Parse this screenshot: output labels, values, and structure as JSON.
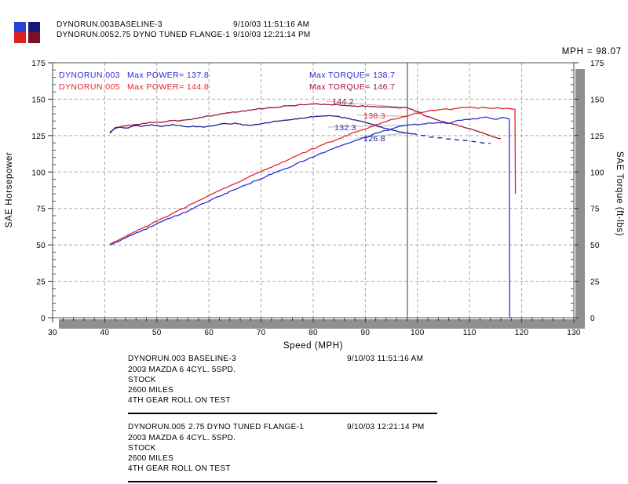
{
  "header": {
    "runs": [
      {
        "file": "DYNORUN.003",
        "desc": "BASELINE-3",
        "timestamp": "9/10/03 11:51:16 AM"
      },
      {
        "file": "DYNORUN.005",
        "desc": "2.75 DYNO TUNED FLANGE-1",
        "timestamp": "9/10/03 12:21:14 PM"
      }
    ]
  },
  "chart_data": {
    "type": "line",
    "cursor_readout": "MPH = 98.07",
    "cursor_mph": 98.07,
    "xlabel": "Speed (MPH)",
    "ylabel_left": "SAE Horsepower",
    "ylabel_right": "SAE Torque (ft-lbs)",
    "xlim": [
      30,
      130
    ],
    "ylim": [
      0,
      175
    ],
    "xticks": [
      30,
      40,
      50,
      60,
      70,
      80,
      90,
      100,
      110,
      120,
      130
    ],
    "yticks": [
      0,
      25,
      50,
      75,
      100,
      125,
      150,
      175
    ],
    "grid": true,
    "legend_position": "top-inside",
    "colors": {
      "grid": "#a8a8a8",
      "shadow": "#8f8f8f",
      "frame": "#6e6e6e",
      "cursor": "#5a5a5a",
      "leader": "#b4b4b4",
      "swatch": {
        "p3": "#2741d9",
        "p5": "#e02020",
        "t3": "#181878",
        "t5": "#7c1020"
      }
    },
    "legend": {
      "rows": [
        {
          "file": "DYNORUN.003",
          "power": "Max POWER= 137.8",
          "torque": "Max TORQUE= 138.7",
          "file_color": "#2a2ad4",
          "power_color": "#2a2ad4",
          "torque_color": "#2a2ad4"
        },
        {
          "file": "DYNORUN.005",
          "power": "Max POWER= 144.8",
          "torque": "Max TORQUE= 146.7",
          "file_color": "#e02433",
          "power_color": "#e02433",
          "torque_color": "#a51235"
        }
      ]
    },
    "annotations": [
      {
        "text": "144.2",
        "value": 144.2,
        "color": "#9e1536",
        "x": 437,
        "y": 133
      },
      {
        "text": "138.3",
        "value": 138.3,
        "color": "#e02433",
        "x": 477,
        "y": 151
      },
      {
        "text": "132.3",
        "value": 132.3,
        "color": "#2a2ad4",
        "x": 440,
        "y": 166
      },
      {
        "text": "126.8",
        "value": 126.8,
        "color": "#1d1d8c",
        "x": 477,
        "y": 180
      }
    ],
    "series": [
      {
        "name": "torque-005",
        "run": "DYNORUN.005",
        "color": "#9e1536",
        "points": [
          [
            41,
            127.5
          ],
          [
            42,
            130.5
          ],
          [
            43,
            131
          ],
          [
            44,
            131.6
          ],
          [
            45,
            132
          ],
          [
            46,
            132.6
          ],
          [
            47,
            133
          ],
          [
            48,
            133.4
          ],
          [
            49,
            134
          ],
          [
            50,
            134.4
          ],
          [
            51,
            134.2
          ],
          [
            52,
            134.8
          ],
          [
            53,
            135.2
          ],
          [
            54,
            135
          ],
          [
            55,
            135.6
          ],
          [
            56,
            136
          ],
          [
            57,
            136.6
          ],
          [
            58,
            137.2
          ],
          [
            59,
            137.8
          ],
          [
            60,
            138.4
          ],
          [
            61,
            139
          ],
          [
            62,
            139.6
          ],
          [
            63,
            140.2
          ],
          [
            64,
            140.6
          ],
          [
            65,
            141
          ],
          [
            66,
            141.4
          ],
          [
            67,
            141.8
          ],
          [
            68,
            142.4
          ],
          [
            69,
            143
          ],
          [
            70,
            143.4
          ],
          [
            71,
            143.8
          ],
          [
            72,
            144.2
          ],
          [
            73,
            144.6
          ],
          [
            74,
            145
          ],
          [
            75,
            145.4
          ],
          [
            76,
            145.6
          ],
          [
            77,
            146
          ],
          [
            78,
            146.2
          ],
          [
            79,
            146.4
          ],
          [
            80,
            146.6
          ],
          [
            81,
            146.7
          ],
          [
            82,
            146.5
          ],
          [
            83,
            146.4
          ],
          [
            84,
            146.2
          ],
          [
            85,
            146
          ],
          [
            86,
            145.8
          ],
          [
            87,
            145.6
          ],
          [
            88,
            145.4
          ],
          [
            89,
            145.2
          ],
          [
            90,
            145
          ],
          [
            91,
            144.9
          ],
          [
            92,
            144.8
          ],
          [
            93,
            144.6
          ],
          [
            94,
            144.5
          ],
          [
            95,
            144.4
          ],
          [
            96,
            144.3
          ],
          [
            97,
            144.2
          ],
          [
            98,
            144.2
          ],
          [
            99,
            143
          ],
          [
            100,
            141.5
          ],
          [
            101,
            139.5
          ],
          [
            102,
            138
          ],
          [
            103,
            136.8
          ],
          [
            104,
            135.6
          ],
          [
            105,
            134.6
          ],
          [
            106,
            133.6
          ],
          [
            107,
            132.6
          ],
          [
            108,
            131.6
          ],
          [
            109,
            130.6
          ],
          [
            110,
            129.8
          ],
          [
            111,
            128.6
          ],
          [
            112,
            127.4
          ],
          [
            113,
            126.2
          ],
          [
            114,
            125
          ],
          [
            115,
            123.8
          ],
          [
            116,
            123
          ]
        ]
      },
      {
        "name": "torque-003",
        "run": "DYNORUN.003",
        "color": "#1d1d8c",
        "points": [
          [
            41,
            126.5
          ],
          [
            42,
            130
          ],
          [
            43,
            130.8
          ],
          [
            44,
            130.2
          ],
          [
            45,
            131
          ],
          [
            46,
            131.8
          ],
          [
            47,
            131.2
          ],
          [
            48,
            132
          ],
          [
            49,
            132.5
          ],
          [
            50,
            131.8
          ],
          [
            51,
            131.2
          ],
          [
            52,
            132
          ],
          [
            53,
            132.6
          ],
          [
            54,
            132
          ],
          [
            55,
            131.4
          ],
          [
            56,
            131
          ],
          [
            57,
            131.6
          ],
          [
            58,
            131.2
          ],
          [
            59,
            130.8
          ],
          [
            60,
            131.4
          ],
          [
            61,
            132
          ],
          [
            62,
            132.8
          ],
          [
            63,
            133.4
          ],
          [
            64,
            133
          ],
          [
            65,
            133.6
          ],
          [
            66,
            133
          ],
          [
            67,
            132.4
          ],
          [
            68,
            132
          ],
          [
            69,
            132.6
          ],
          [
            70,
            133.2
          ],
          [
            71,
            133.8
          ],
          [
            72,
            134.2
          ],
          [
            73,
            134.8
          ],
          [
            74,
            135.2
          ],
          [
            75,
            135.6
          ],
          [
            76,
            136
          ],
          [
            77,
            136.4
          ],
          [
            78,
            137
          ],
          [
            79,
            137.4
          ],
          [
            80,
            137.8
          ],
          [
            81,
            138.2
          ],
          [
            82,
            138.5
          ],
          [
            83,
            138.7
          ],
          [
            84,
            138.4
          ],
          [
            85,
            138
          ],
          [
            86,
            137.4
          ],
          [
            87,
            136.6
          ],
          [
            88,
            135.8
          ],
          [
            89,
            135
          ],
          [
            90,
            134
          ],
          [
            91,
            133
          ],
          [
            92,
            132
          ],
          [
            93,
            131
          ],
          [
            94,
            130
          ],
          [
            95,
            129
          ],
          [
            96,
            128.2
          ],
          [
            97,
            127.4
          ],
          [
            98,
            126.8
          ],
          [
            99,
            126.2
          ]
        ]
      },
      {
        "name": "torque-003-tail",
        "run": "DYNORUN.003",
        "color": "#1d1d8c",
        "dash": "6 5",
        "points": [
          [
            99,
            126.2
          ],
          [
            100,
            125.6
          ],
          [
            101,
            125
          ],
          [
            102,
            124.4
          ],
          [
            103,
            124
          ],
          [
            104,
            123.4
          ],
          [
            105,
            123
          ],
          [
            106,
            122.6
          ],
          [
            107,
            122.8
          ],
          [
            108,
            122
          ],
          [
            109,
            121.6
          ],
          [
            110,
            121.2
          ],
          [
            111,
            120.8
          ],
          [
            112,
            120.4
          ],
          [
            113,
            120
          ],
          [
            114,
            119.6
          ]
        ]
      },
      {
        "name": "power-003",
        "run": "DYNORUN.003",
        "color": "#2632d8",
        "points": [
          [
            41,
            50
          ],
          [
            43,
            53
          ],
          [
            45,
            56.5
          ],
          [
            47,
            59.5
          ],
          [
            49,
            62.5
          ],
          [
            51,
            66
          ],
          [
            53,
            69
          ],
          [
            55,
            72
          ],
          [
            57,
            75
          ],
          [
            59,
            78.5
          ],
          [
            61,
            82
          ],
          [
            63,
            85
          ],
          [
            65,
            88
          ],
          [
            67,
            91
          ],
          [
            69,
            94
          ],
          [
            71,
            97
          ],
          [
            73,
            100
          ],
          [
            75,
            102.5
          ],
          [
            77,
            106
          ],
          [
            79,
            109
          ],
          [
            81,
            112
          ],
          [
            83,
            115
          ],
          [
            85,
            117.5
          ],
          [
            87,
            120
          ],
          [
            89,
            122.5
          ],
          [
            91,
            125
          ],
          [
            93,
            127.5
          ],
          [
            95,
            129.5
          ],
          [
            97,
            131.5
          ],
          [
            99,
            132.5
          ],
          [
            101,
            133
          ],
          [
            103,
            133.5
          ],
          [
            105,
            134
          ],
          [
            106,
            133.3
          ],
          [
            107,
            134.5
          ],
          [
            108,
            135.5
          ],
          [
            109,
            136
          ],
          [
            110,
            136
          ],
          [
            111,
            136.5
          ],
          [
            112,
            137.3
          ],
          [
            113,
            137.8
          ],
          [
            114,
            136.8
          ],
          [
            115,
            136.2
          ],
          [
            116,
            137.2
          ],
          [
            117,
            137
          ],
          [
            117.6,
            136.5
          ],
          [
            117.7,
            0
          ]
        ]
      },
      {
        "name": "power-005",
        "run": "DYNORUN.005",
        "color": "#e8232d",
        "points": [
          [
            41,
            50.5
          ],
          [
            43,
            54
          ],
          [
            45,
            57.5
          ],
          [
            47,
            61
          ],
          [
            49,
            64.5
          ],
          [
            51,
            68
          ],
          [
            53,
            71.5
          ],
          [
            55,
            75
          ],
          [
            57,
            78.5
          ],
          [
            59,
            82
          ],
          [
            61,
            85.5
          ],
          [
            63,
            89
          ],
          [
            65,
            92
          ],
          [
            67,
            95.5
          ],
          [
            69,
            99
          ],
          [
            71,
            102
          ],
          [
            73,
            105
          ],
          [
            75,
            108
          ],
          [
            77,
            111.5
          ],
          [
            79,
            114.5
          ],
          [
            81,
            117.5
          ],
          [
            83,
            120.5
          ],
          [
            85,
            123
          ],
          [
            87,
            126
          ],
          [
            89,
            128.5
          ],
          [
            91,
            131
          ],
          [
            93,
            133.5
          ],
          [
            95,
            136
          ],
          [
            97,
            137.8
          ],
          [
            98,
            138.3
          ],
          [
            99,
            139.5
          ],
          [
            100,
            140.5
          ],
          [
            101,
            141
          ],
          [
            102,
            141.8
          ],
          [
            103,
            142.3
          ],
          [
            104,
            142.8
          ],
          [
            105,
            143.2
          ],
          [
            106,
            143
          ],
          [
            107,
            143.4
          ],
          [
            108,
            144
          ],
          [
            109,
            144.3
          ],
          [
            110,
            144.8
          ],
          [
            111,
            144.3
          ],
          [
            112,
            144
          ],
          [
            113,
            144.2
          ],
          [
            114,
            143.8
          ],
          [
            115,
            144
          ],
          [
            116,
            143.6
          ],
          [
            117,
            143.8
          ],
          [
            118,
            143.4
          ],
          [
            118.7,
            143
          ],
          [
            118.8,
            85
          ]
        ]
      }
    ]
  },
  "footer": {
    "runs": [
      {
        "file": "DYNORUN.003",
        "desc": "BASELINE-3",
        "timestamp": "9/10/03 11:51:16 AM",
        "details": [
          "2003 MAZDA 6 4CYL. 5SPD.",
          "STOCK",
          "2600 MILES",
          "4TH GEAR ROLL ON TEST"
        ]
      },
      {
        "file": "DYNORUN.005",
        "desc": "2.75 DYNO TUNED FLANGE-1",
        "timestamp": "9/10/03 12:21:14 PM",
        "details": [
          "2003 MAZDA 6 4CYL. 5SPD.",
          "STOCK",
          "2600 MILES",
          "4TH GEAR ROLL ON TEST"
        ]
      }
    ]
  }
}
